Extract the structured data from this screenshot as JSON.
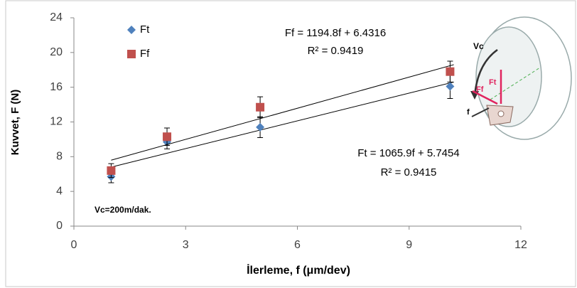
{
  "chart_data": {
    "type": "scatter",
    "xlabel": "İlerleme, f (μm/dev)",
    "ylabel": "Kuvvet, F (N)",
    "xlim": [
      0,
      12
    ],
    "ylim": [
      0,
      24
    ],
    "xticks": [
      0,
      3,
      6,
      9,
      12
    ],
    "yticks": [
      0,
      4,
      8,
      12,
      16,
      20,
      24
    ],
    "grid": false,
    "legend": "top-left",
    "series": [
      {
        "name": "Ft",
        "color": "#4f81bd",
        "marker": "diamond",
        "x": [
          1,
          2.5,
          5,
          10.1
        ],
        "values": [
          5.7,
          9.7,
          11.4,
          16.1
        ],
        "errors": [
          0.7,
          0.8,
          1.2,
          1.4
        ],
        "trendline": {
          "x": [
            1,
            10.2
          ],
          "y": [
            6.8,
            16.6
          ],
          "equation": "Ft = 1065.9f + 5.7454",
          "r2": "R² = 0.9415"
        }
      },
      {
        "name": "Ff",
        "color": "#c0504d",
        "marker": "square",
        "x": [
          1,
          2.5,
          5,
          10.1
        ],
        "values": [
          6.4,
          10.3,
          13.7,
          17.8
        ],
        "errors": [
          0.8,
          1.0,
          1.2,
          1.2
        ],
        "trendline": {
          "x": [
            1,
            10.2
          ],
          "y": [
            7.6,
            18.6
          ],
          "equation": "Ff = 1194.8f + 6.4316",
          "r2": "R² = 0.9419"
        }
      }
    ],
    "annotation": "Vc=200m/dak.",
    "illustration_labels": [
      "Vc",
      "Ft",
      "Ff",
      "f"
    ]
  }
}
